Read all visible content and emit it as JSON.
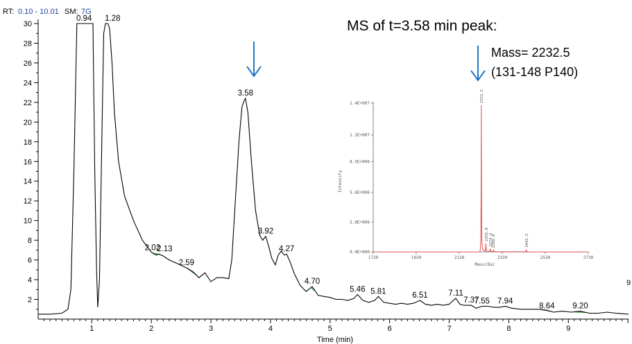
{
  "header": {
    "rt_label": "RT:",
    "rt_value": "0.10 - 10.01",
    "sm_label": "SM:",
    "sm_value": "7G",
    "label_color": "#000000",
    "value_color": "#1f3f99"
  },
  "annotations": {
    "inset_title": "MS of t=3.58 min peak:",
    "mass_line": "Mass= 2232.5",
    "peptide_line": "(131-148 P140)",
    "edge_mark": "9",
    "arrow_color": "#1f78c8"
  },
  "chart_data": [
    {
      "type": "line",
      "title": "",
      "xlabel": "Time (min)",
      "ylabel": "",
      "xlim": [
        0.1,
        10.01
      ],
      "ylim": [
        0,
        30
      ],
      "x_ticks": [
        "1",
        "2",
        "3",
        "4",
        "5",
        "6",
        "7",
        "8",
        "9"
      ],
      "y_ticks": [
        "2",
        "4",
        "6",
        "8",
        "10",
        "12",
        "14",
        "16",
        "18",
        "20",
        "22",
        "24",
        "26",
        "28",
        "30"
      ],
      "line_color": "#000000",
      "baseline_color": "#2e9e2e",
      "series": [
        {
          "x": [
            0.1,
            0.3,
            0.5,
            0.6,
            0.65,
            0.7,
            0.75,
            1.0,
            1.02,
            1.05,
            1.08,
            1.1,
            1.13,
            1.16,
            1.2,
            1.23,
            1.27,
            1.3,
            1.34,
            1.38,
            1.45,
            1.55,
            1.7,
            1.85,
            2.0,
            2.02,
            2.08,
            2.13,
            2.2,
            2.3,
            2.45,
            2.59,
            2.7,
            2.8,
            2.9,
            3.0,
            3.1,
            3.2,
            3.3,
            3.35,
            3.42,
            3.47,
            3.52,
            3.56,
            3.58,
            3.62,
            3.68,
            3.75,
            3.82,
            3.87,
            3.92,
            3.97,
            4.02,
            4.08,
            4.13,
            4.18,
            4.23,
            4.27,
            4.33,
            4.4,
            4.5,
            4.6,
            4.7,
            4.8,
            4.9,
            5.0,
            5.1,
            5.2,
            5.3,
            5.4,
            5.46,
            5.55,
            5.65,
            5.75,
            5.81,
            5.9,
            6.0,
            6.1,
            6.2,
            6.3,
            6.4,
            6.51,
            6.6,
            6.7,
            6.8,
            6.9,
            7.0,
            7.05,
            7.11,
            7.18,
            7.25,
            7.37,
            7.45,
            7.55,
            7.65,
            7.75,
            7.85,
            7.94,
            8.05,
            8.2,
            8.35,
            8.5,
            8.64,
            8.75,
            8.9,
            9.05,
            9.2,
            9.35,
            9.5,
            9.65,
            9.8,
            10.01
          ],
          "y": [
            0.5,
            0.5,
            0.6,
            1.0,
            3.0,
            15.0,
            30.0,
            30.0,
            30.0,
            15.0,
            5.0,
            1.2,
            4.0,
            15.0,
            29.0,
            30.0,
            30.0,
            29.5,
            26.0,
            21.0,
            16.0,
            12.5,
            10.0,
            8.0,
            6.8,
            6.7,
            6.5,
            6.6,
            6.4,
            6.0,
            5.6,
            5.2,
            4.8,
            4.2,
            4.7,
            3.8,
            4.2,
            4.2,
            4.1,
            6.0,
            13.0,
            18.0,
            21.5,
            22.2,
            22.4,
            21.0,
            16.0,
            11.0,
            8.5,
            8.0,
            8.4,
            7.4,
            6.2,
            5.5,
            6.5,
            6.9,
            6.5,
            6.6,
            5.8,
            4.6,
            3.4,
            2.8,
            3.3,
            2.4,
            2.3,
            2.2,
            2.0,
            2.0,
            1.9,
            2.1,
            2.5,
            1.9,
            1.7,
            1.9,
            2.3,
            1.7,
            1.6,
            1.5,
            1.6,
            1.5,
            1.6,
            1.9,
            1.5,
            1.4,
            1.5,
            1.4,
            1.5,
            1.8,
            2.1,
            1.5,
            1.4,
            1.4,
            1.1,
            1.3,
            1.3,
            1.2,
            1.2,
            1.3,
            1.1,
            1.0,
            1.0,
            1.0,
            0.9,
            0.7,
            0.8,
            0.7,
            0.8,
            0.6,
            0.6,
            0.7,
            0.6,
            0.5
          ]
        }
      ],
      "peak_labels": [
        {
          "x": 0.94,
          "y": 30.0,
          "text": "0.94"
        },
        {
          "x": 1.28,
          "y": 30.0,
          "text": "1.28"
        },
        {
          "x": 2.02,
          "y": 6.7,
          "text": "2.02"
        },
        {
          "x": 2.13,
          "y": 6.6,
          "text": "2.13"
        },
        {
          "x": 2.59,
          "y": 5.2,
          "text": "2.59"
        },
        {
          "x": 3.58,
          "y": 22.4,
          "text": "3.58"
        },
        {
          "x": 3.92,
          "y": 8.4,
          "text": "3.92"
        },
        {
          "x": 4.27,
          "y": 6.6,
          "text": "4.27"
        },
        {
          "x": 4.7,
          "y": 3.3,
          "text": "4.70"
        },
        {
          "x": 5.46,
          "y": 2.5,
          "text": "5.46"
        },
        {
          "x": 5.81,
          "y": 2.3,
          "text": "5.81"
        },
        {
          "x": 6.51,
          "y": 1.9,
          "text": "6.51"
        },
        {
          "x": 7.11,
          "y": 2.1,
          "text": "7.11"
        },
        {
          "x": 7.37,
          "y": 1.4,
          "text": "7.37"
        },
        {
          "x": 7.55,
          "y": 1.3,
          "text": "7.55"
        },
        {
          "x": 7.94,
          "y": 1.3,
          "text": "7.94"
        },
        {
          "x": 8.64,
          "y": 0.8,
          "text": "8.64"
        },
        {
          "x": 9.2,
          "y": 0.8,
          "text": "9.20"
        }
      ],
      "baselines": [
        {
          "x1": 2.02,
          "x2": 2.15
        },
        {
          "x1": 2.6,
          "x2": 2.75
        },
        {
          "x1": 4.68,
          "x2": 4.75
        },
        {
          "x1": 8.55,
          "x2": 8.7
        },
        {
          "x1": 9.1,
          "x2": 9.3
        }
      ]
    },
    {
      "type": "line",
      "title": "",
      "xlabel": "Mass(Da)",
      "ylabel": "Intensity",
      "xlim": [
        1730,
        2730
      ],
      "ylim": [
        0,
        14000000
      ],
      "x_ticks": [
        "1730",
        "1930",
        "2130",
        "2330",
        "2530",
        "2730"
      ],
      "y_ticks": [
        "0.0E+000",
        "2.8E+006",
        "5.6E+006",
        "8.5E+006",
        "1.1E+007",
        "1.4E+007"
      ],
      "y_tick_values": [
        0,
        2800000,
        5600000,
        8500000,
        11000000,
        14000000
      ],
      "line_color": "#e05050",
      "series": [
        {
          "x": [
            1730,
            2200,
            2226,
            2228,
            2230,
            2231.5,
            2232.5,
            2233.5,
            2235,
            2238,
            2245,
            2252,
            2254,
            2256,
            2258,
            2262,
            2272,
            2274,
            2276,
            2285,
            2288.8,
            2292,
            2300,
            2440,
            2442,
            2444,
            2450,
            2730
          ],
          "y": [
            0,
            0,
            0,
            300000,
            1000000,
            5000000,
            13800000,
            6000000,
            1200000,
            300000,
            100000,
            100000,
            800000,
            120000,
            80000,
            60000,
            60000,
            300000,
            60000,
            40000,
            180000,
            40000,
            20000,
            20000,
            230000,
            20000,
            0,
            0
          ]
        }
      ],
      "peak_labels": [
        {
          "x": 2232.5,
          "y": 13800000,
          "text": "2232.5"
        },
        {
          "x": 2255.0,
          "y": 800000,
          "text": "2255.0"
        },
        {
          "x": 2274.9,
          "y": 300000,
          "text": "2274.9"
        },
        {
          "x": 2288.8,
          "y": 180000,
          "text": "2288.8"
        },
        {
          "x": 2442.2,
          "y": 230000,
          "text": "2442.2"
        }
      ]
    }
  ]
}
